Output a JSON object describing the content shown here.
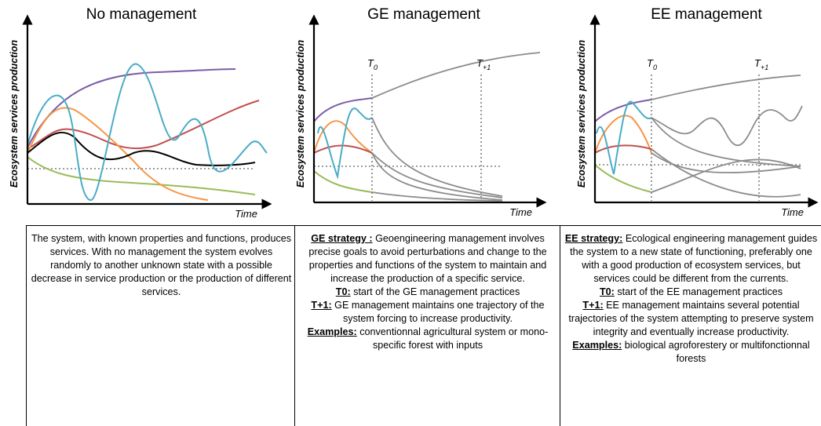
{
  "panels": [
    {
      "title": "No management",
      "y_axis_label": "Ecosystem services production",
      "x_axis_label": "Time",
      "markers": [],
      "description": [
        {
          "text": "The system, with known properties and functions, produces services. With no management the system evolves randomly to another unknown state with a possible decrease in service production or the production of different services."
        }
      ]
    },
    {
      "title": "GE management",
      "y_axis_label": "Ecosystem services production",
      "x_axis_label": "Time",
      "markers": [
        {
          "main": "T",
          "sub": "0"
        },
        {
          "main": "T",
          "sub": "+1"
        }
      ],
      "description": [
        {
          "label": "GE strategy :",
          "text": "Geoengineering management involves precise goals to avoid perturbations and change to the properties and functions of the system to maintain and increase the production of a specific service."
        },
        {
          "label": "T0:",
          "text": "start of the GE management practices"
        },
        {
          "label": "T+1:",
          "text": "GE management maintains one trajectory of the system forcing to increase productivity."
        },
        {
          "label": "Examples:",
          "text": "conventionnal agricultural system or mono-specific forest with inputs"
        }
      ]
    },
    {
      "title": "EE management",
      "y_axis_label": "Ecosystem services production",
      "x_axis_label": "Time",
      "markers": [
        {
          "main": "T",
          "sub": "0"
        },
        {
          "main": "T",
          "sub": "+1"
        }
      ],
      "description": [
        {
          "label": "EE strategy:",
          "text": "Ecological engineering management guides the system to a new state of functioning, preferably one with a good production of ecosystem services, but services could be different from the currents."
        },
        {
          "label": "T0:",
          "text": "start of the EE management practices"
        },
        {
          "label": "T+1:",
          "text": "EE management maintains several potential trajectories of the system attempting to preserve system integrity and eventually increase productivity."
        },
        {
          "label": "Examples:",
          "text": "biological agroforestery or multifonctionnal forests"
        }
      ]
    }
  ]
}
